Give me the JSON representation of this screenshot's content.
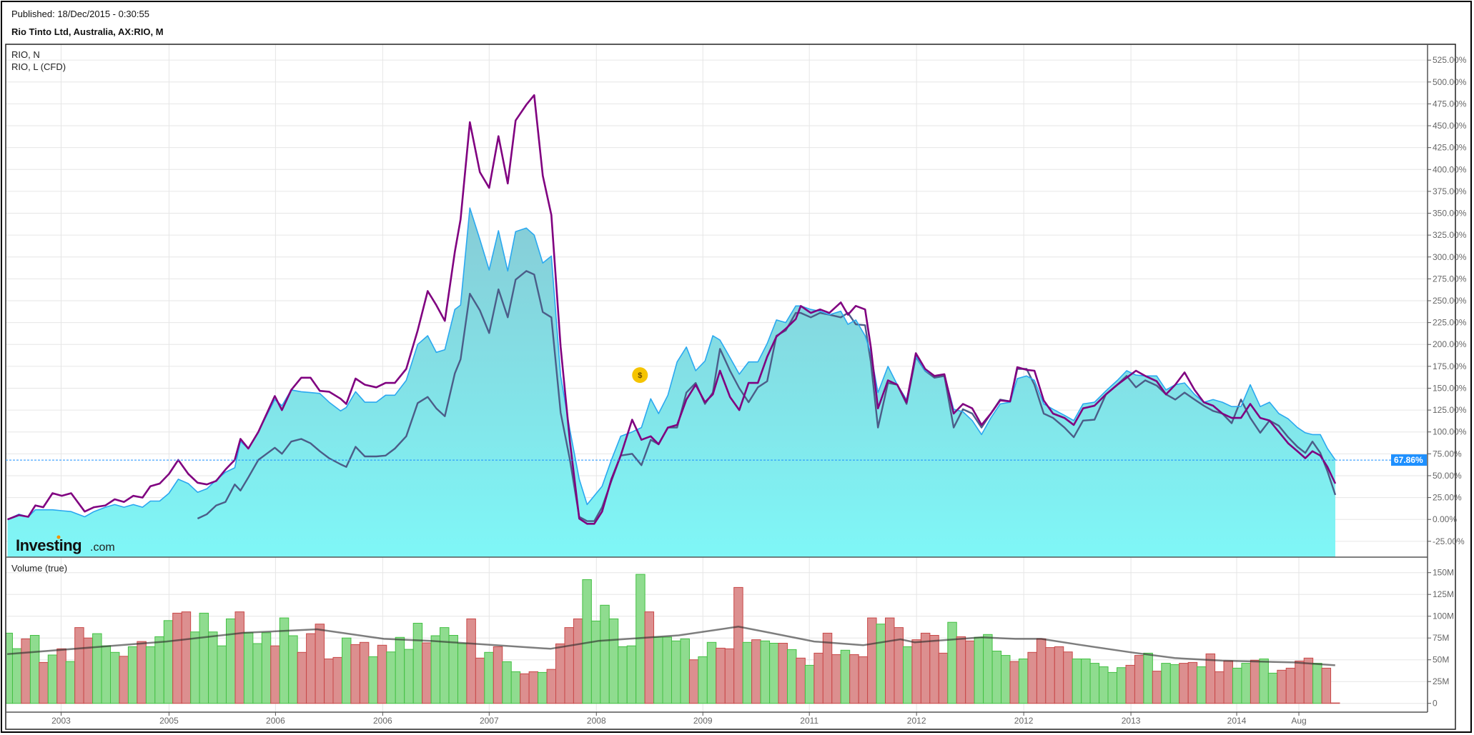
{
  "header": {
    "published": "Published: 18/Dec/2015 - 0:30:55",
    "title": "Rio Tinto Ltd, Australia, AX:RIO, M"
  },
  "colors": {
    "rio_n": "#800080",
    "rio_l_cfd": "#2aa8f0",
    "third_line": "#4b5d88",
    "area_top": "#8ab9c8",
    "area_bottom": "#7ff7f7",
    "volume_up": "#8fdc8f",
    "volume_up_border": "#44c044",
    "volume_down": "#dc8f8f",
    "volume_down_border": "#c84848",
    "last_value": "#1e90ff",
    "event_marker": "#f5c400"
  },
  "logo": {
    "name": "Investing",
    "suffix": ".com"
  },
  "event_marker": {
    "label": "$",
    "x": 88.5,
    "y": 165
  },
  "chart_data": [
    {
      "type": "area",
      "panel": "price",
      "legend": [
        "RIO, N",
        "RIO, L (CFD)"
      ],
      "ylabel": "",
      "ylim": [
        -35,
        535
      ],
      "y_ticks": [
        "-25.00%",
        "0.00%",
        "25.00%",
        "50.00%",
        "75.00%",
        "100.00%",
        "125.00%",
        "150.00%",
        "175.00%",
        "200.00%",
        "225.00%",
        "250.00%",
        "275.00%",
        "300.00%",
        "325.00%",
        "350.00%",
        "375.00%",
        "400.00%",
        "425.00%",
        "450.00%",
        "475.00%",
        "500.00%",
        "525.00%"
      ],
      "y_tick_values": [
        -25,
        0,
        25,
        50,
        75,
        100,
        125,
        150,
        175,
        200,
        225,
        250,
        275,
        300,
        325,
        350,
        375,
        400,
        425,
        450,
        475,
        500,
        525
      ],
      "last_value_label": "67.86%",
      "last_value": 67.86,
      "x_range": [
        0,
        185.8
      ],
      "x": [
        0,
        1.6,
        2.9,
        3.9,
        5,
        6.3,
        7.6,
        8.9,
        10.8,
        12.1,
        13.7,
        15,
        16.3,
        17.6,
        18.9,
        20,
        21.3,
        22.6,
        23.9,
        25.3,
        26.6,
        27.9,
        29.2,
        30.5,
        31.8,
        32.6,
        33.7,
        35.1,
        37.4,
        38.4,
        39.7,
        41.1,
        42.4,
        43.7,
        45,
        46.6,
        47.4,
        48.7,
        50,
        51.6,
        52.9,
        54.2,
        55.8,
        57.4,
        58.8,
        60,
        61.2,
        62.6,
        63.4,
        64.7,
        66.1,
        67.4,
        68.7,
        70,
        71.1,
        72.6,
        73.7,
        74.9,
        76.1,
        77.4,
        78.7,
        80,
        81.1,
        82.1,
        83.2,
        84.5,
        85.8,
        87.4,
        88.7,
        90,
        91.1,
        92.4,
        93.7,
        95,
        96.3,
        97.6,
        98.7,
        99.7,
        101.1,
        102.4,
        103.7,
        105,
        106.3,
        107.6,
        108.9,
        110.3,
        111,
        112.4,
        113.7,
        115,
        116.6,
        117.6,
        118.7,
        120,
        120.8,
        121.8,
        123.2,
        124.5,
        125.8,
        127.1,
        128.4,
        129.7,
        131.1,
        132.4,
        133.7,
        135,
        136.3,
        137.6,
        138.9,
        140.3,
        141.3,
        142.6,
        143.7,
        145,
        146.3,
        147.9,
        149.2,
        150.5,
        152.1,
        153.7,
        155.3,
        156.6,
        157.9,
        159.2,
        160.8,
        162.1,
        163.4,
        164.7,
        166.1,
        167.4,
        168.7,
        170,
        171.3,
        172.6,
        173.9,
        175.3,
        176.6,
        177.9,
        179.2,
        180.5,
        181.6,
        182.6,
        183.7,
        184.7,
        185.8
      ],
      "series": [
        {
          "name": "RIO, N",
          "style": "line",
          "values": [
            0,
            5,
            3,
            16,
            14,
            30,
            27,
            30,
            9,
            14,
            16,
            23,
            20,
            27,
            25,
            38,
            41,
            52,
            68,
            52,
            42,
            40,
            44,
            57,
            68,
            92,
            81,
            100,
            141,
            125,
            148,
            162,
            162,
            147,
            146,
            138,
            132,
            161,
            154,
            151,
            156,
            156,
            172,
            216,
            261,
            245,
            227,
            306,
            343,
            454,
            397,
            379,
            438,
            384,
            456,
            474,
            485,
            393,
            348,
            197,
            89,
            1,
            -5,
            -5,
            9,
            46,
            73,
            114,
            91,
            95,
            86,
            105,
            108,
            137,
            154,
            134,
            143,
            170,
            140,
            125,
            156,
            156,
            186,
            209,
            218,
            229,
            244,
            236,
            240,
            236,
            248,
            234,
            244,
            240,
            197,
            127,
            159,
            154,
            134,
            190,
            172,
            164,
            166,
            121,
            132,
            127,
            108,
            121,
            136,
            135,
            174,
            171,
            170,
            136,
            121,
            116,
            108,
            127,
            130,
            143,
            154,
            162,
            170,
            164,
            158,
            143,
            154,
            168,
            148,
            134,
            130,
            121,
            116,
            116,
            132,
            116,
            113,
            100,
            87,
            78,
            70,
            78,
            73,
            60,
            41
          ]
        },
        {
          "name": "RIO, L (CFD)",
          "style": "area",
          "values": [
            0,
            6,
            3,
            11,
            11,
            11,
            10,
            9,
            3,
            9,
            14,
            17,
            14,
            17,
            14,
            21,
            21,
            30,
            46,
            41,
            31,
            35,
            45,
            54,
            59,
            89,
            81,
            100,
            137,
            130,
            148,
            146,
            145,
            144,
            134,
            124,
            128,
            146,
            134,
            134,
            142,
            142,
            159,
            200,
            210,
            191,
            194,
            240,
            245,
            356,
            320,
            285,
            330,
            284,
            329,
            333,
            325,
            293,
            301,
            164,
            102,
            46,
            17,
            27,
            38,
            68,
            95,
            100,
            105,
            138,
            121,
            142,
            180,
            197,
            170,
            181,
            210,
            205,
            185,
            166,
            180,
            180,
            201,
            228,
            225,
            244,
            244,
            240,
            238,
            234,
            238,
            223,
            228,
            210,
            190,
            145,
            175,
            154,
            137,
            186,
            170,
            164,
            166,
            126,
            123,
            113,
            97,
            116,
            132,
            134,
            161,
            164,
            159,
            132,
            126,
            119,
            113,
            132,
            134,
            147,
            159,
            170,
            165,
            164,
            164,
            148,
            154,
            156,
            143,
            134,
            137,
            134,
            129,
            129,
            154,
            129,
            134,
            121,
            115,
            105,
            99,
            97,
            97,
            81,
            68
          ]
        },
        {
          "name": "",
          "style": "line",
          "values": [
            null,
            null,
            null,
            null,
            null,
            null,
            null,
            null,
            null,
            null,
            null,
            null,
            null,
            null,
            null,
            null,
            null,
            null,
            null,
            null,
            1,
            6,
            16,
            20,
            40,
            33,
            48,
            68,
            82,
            75,
            89,
            92,
            87,
            78,
            70,
            63,
            60,
            83,
            72,
            72,
            73,
            81,
            95,
            133,
            140,
            127,
            118,
            167,
            183,
            258,
            239,
            213,
            263,
            231,
            274,
            284,
            280,
            237,
            231,
            122,
            68,
            3,
            -2,
            -2,
            14,
            44,
            73,
            75,
            62,
            91,
            86,
            105,
            105,
            145,
            156,
            132,
            145,
            195,
            170,
            150,
            134,
            151,
            158,
            210,
            216,
            236,
            236,
            231,
            236,
            234,
            231,
            236,
            223,
            222,
            180,
            105,
            156,
            154,
            132,
            186,
            170,
            162,
            164,
            105,
            126,
            121,
            105,
            121,
            137,
            135,
            172,
            172,
            154,
            121,
            116,
            105,
            94,
            113,
            114,
            143,
            154,
            164,
            151,
            159,
            153,
            143,
            137,
            145,
            137,
            130,
            124,
            121,
            110,
            137,
            116,
            99,
            113,
            107,
            94,
            83,
            76,
            89,
            76,
            55,
            28
          ]
        }
      ]
    },
    {
      "type": "bar",
      "panel": "volume",
      "title": "Volume (true)",
      "ylim": [
        -10,
        160
      ],
      "y_ticks": [
        "0",
        "25M",
        "50M",
        "75M",
        "100M",
        "125M",
        "150M"
      ],
      "y_tick_values": [
        0,
        25,
        50,
        75,
        100,
        125,
        150
      ],
      "x_ticks": [
        "2003",
        "2005",
        "2006",
        "2006",
        "2007",
        "2008",
        "2009",
        "2011",
        "2012",
        "2012",
        "2013",
        "2014",
        "Aug"
      ],
      "x_tick_values": [
        7.5,
        22.6,
        37.5,
        52.5,
        67.4,
        82.4,
        97.3,
        112.2,
        127.2,
        142.2,
        157.2,
        172,
        180.7
      ],
      "unit": "millions",
      "direction": "uududududduuududuuudduuuuuduuuduudddddudduduuuuduuuudduduuddudddduuuuuuuduuuuduuddduduudududddudddudduddddudduuuududdddduuuuuudduduudduddduuduuddddudd",
      "values": [
        80.6,
        62.8,
        74,
        78,
        47,
        55.5,
        62.6,
        48,
        87,
        75,
        80,
        66,
        58.5,
        54,
        65,
        71,
        65,
        76.5,
        95,
        103.5,
        105,
        82,
        103.5,
        82,
        66,
        97,
        105,
        81,
        68.6,
        81,
        66,
        98,
        77.6,
        58.5,
        80,
        91,
        51,
        52.7,
        75,
        67.5,
        70,
        53.5,
        66.7,
        59,
        75.7,
        62,
        92,
        69.4,
        77.6,
        87,
        78,
        68.6,
        97,
        52,
        58.5,
        65,
        47.8,
        36.3,
        33.9,
        36.3,
        35.5,
        39,
        68.3,
        87,
        97,
        142,
        94.5,
        112.6,
        97,
        65,
        66,
        148,
        105,
        76,
        76,
        71.6,
        74,
        50,
        53.5,
        70,
        63.4,
        62.6,
        133,
        70,
        73,
        71.6,
        69,
        69,
        61.7,
        52,
        43.7,
        57.6,
        80.6,
        56,
        61,
        56,
        53.5,
        98,
        91,
        98,
        87,
        65,
        73,
        80.6,
        78,
        57.6,
        93,
        76.5,
        71.6,
        75.7,
        79,
        60,
        55,
        48,
        51,
        58.5,
        74,
        64,
        65,
        59,
        51,
        51,
        46,
        42,
        35.5,
        41,
        43.7,
        55,
        57.6,
        37,
        46,
        44.5,
        46,
        47,
        42,
        56.8,
        36.3,
        48.6,
        40.4,
        46,
        49.5,
        51,
        34.7,
        38,
        40.4,
        48.6,
        52,
        46,
        40.4,
        0.5
      ],
      "moving_average": [
        [
          0.4,
          56.5
        ],
        [
          18.3,
          71
        ],
        [
          27,
          81
        ],
        [
          35.2,
          85
        ],
        [
          42.7,
          74
        ],
        [
          48,
          71.6
        ],
        [
          61.4,
          62.6
        ],
        [
          66.8,
          71.6
        ],
        [
          75.8,
          78
        ],
        [
          82.5,
          88
        ],
        [
          85.7,
          81.7
        ],
        [
          91,
          71
        ],
        [
          96.5,
          66.7
        ],
        [
          100.7,
          73.5
        ],
        [
          102.3,
          70
        ],
        [
          109.8,
          75.7
        ],
        [
          113.6,
          74
        ],
        [
          116.5,
          74
        ],
        [
          120.8,
          67.2
        ],
        [
          126.6,
          58.5
        ],
        [
          131.5,
          52
        ],
        [
          136.8,
          49
        ],
        [
          144.9,
          47
        ],
        [
          149.5,
          43.7
        ]
      ]
    }
  ]
}
